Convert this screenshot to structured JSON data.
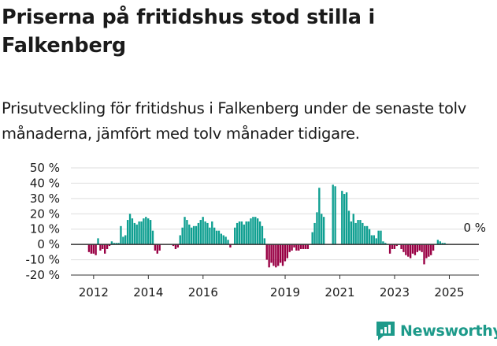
{
  "title": "Priserna på fritidshus stod stilla i Falkenberg",
  "subtitle": "Prisutveckling för fritidshus i Falkenberg under de senaste tolv månaderna, jämfört med tolv månader tidigare.",
  "brand": {
    "name": "Newsworthy",
    "icon": "newsworthy-logo-icon",
    "color": "#1d9a8a"
  },
  "chart_data": {
    "type": "bar",
    "title": "Priserna på fritidshus stod stilla i Falkenberg",
    "xlabel": "",
    "ylabel": "",
    "ylim": [
      -20,
      50
    ],
    "xlim": [
      2011.17,
      2026.08
    ],
    "y_ticks": [
      50,
      40,
      30,
      20,
      10,
      0,
      -10,
      -20
    ],
    "y_tick_labels": [
      "50 %",
      "40 %",
      "30 %",
      "20 %",
      "10 %",
      "0 %",
      "-10 %",
      "-20 %"
    ],
    "x_ticks": [
      2012,
      2014,
      2016,
      2019,
      2021,
      2023,
      2025
    ],
    "x_tick_labels": [
      "2012",
      "2014",
      "2016",
      "2019",
      "2021",
      "2023",
      "2025"
    ],
    "grid": true,
    "colors": {
      "positive": "#0f9f91",
      "negative": "#990044",
      "zero_line": "#333333",
      "grid": "#dddddd"
    },
    "annotation": {
      "text": "0 %",
      "x": 2025.67,
      "y": 0
    },
    "x_start": 2011.83,
    "x_step": 0.0833333,
    "values": [
      -5,
      -6,
      -6,
      -7,
      4,
      -4,
      -3,
      -6,
      -3,
      -1,
      2,
      1,
      1,
      1,
      12,
      5,
      6,
      16,
      20,
      17,
      14,
      13,
      15,
      15,
      17,
      18,
      17,
      16,
      9,
      -4,
      -6,
      -4,
      null,
      null,
      null,
      null,
      null,
      -1,
      -3,
      -2,
      6,
      11,
      18,
      16,
      13,
      11,
      12,
      12,
      14,
      16,
      18,
      15,
      14,
      11,
      15,
      11,
      9,
      9,
      7,
      6,
      5,
      3,
      -2,
      null,
      11,
      14,
      15,
      15,
      13,
      15,
      15,
      17,
      18,
      18,
      17,
      15,
      12,
      4,
      -10,
      -15,
      -12,
      -14,
      -15,
      -14,
      -12,
      -14,
      -11,
      -9,
      -5,
      -4,
      -2,
      -4,
      -4,
      -3,
      -3,
      -3,
      -3,
      null,
      8,
      14,
      21,
      37,
      20,
      18,
      null,
      null,
      null,
      39,
      38,
      null,
      null,
      35,
      33,
      34,
      22,
      15,
      20,
      14,
      16,
      16,
      14,
      12,
      12,
      10,
      6,
      6,
      4,
      9,
      9,
      2,
      1,
      null,
      -6,
      -3,
      -3,
      -1,
      null,
      -3,
      -5,
      -7,
      -8,
      -9,
      -6,
      -7,
      -5,
      -4,
      -5,
      -13,
      -9,
      -8,
      -7,
      -4,
      null,
      3,
      2,
      1,
      1,
      0
    ]
  }
}
